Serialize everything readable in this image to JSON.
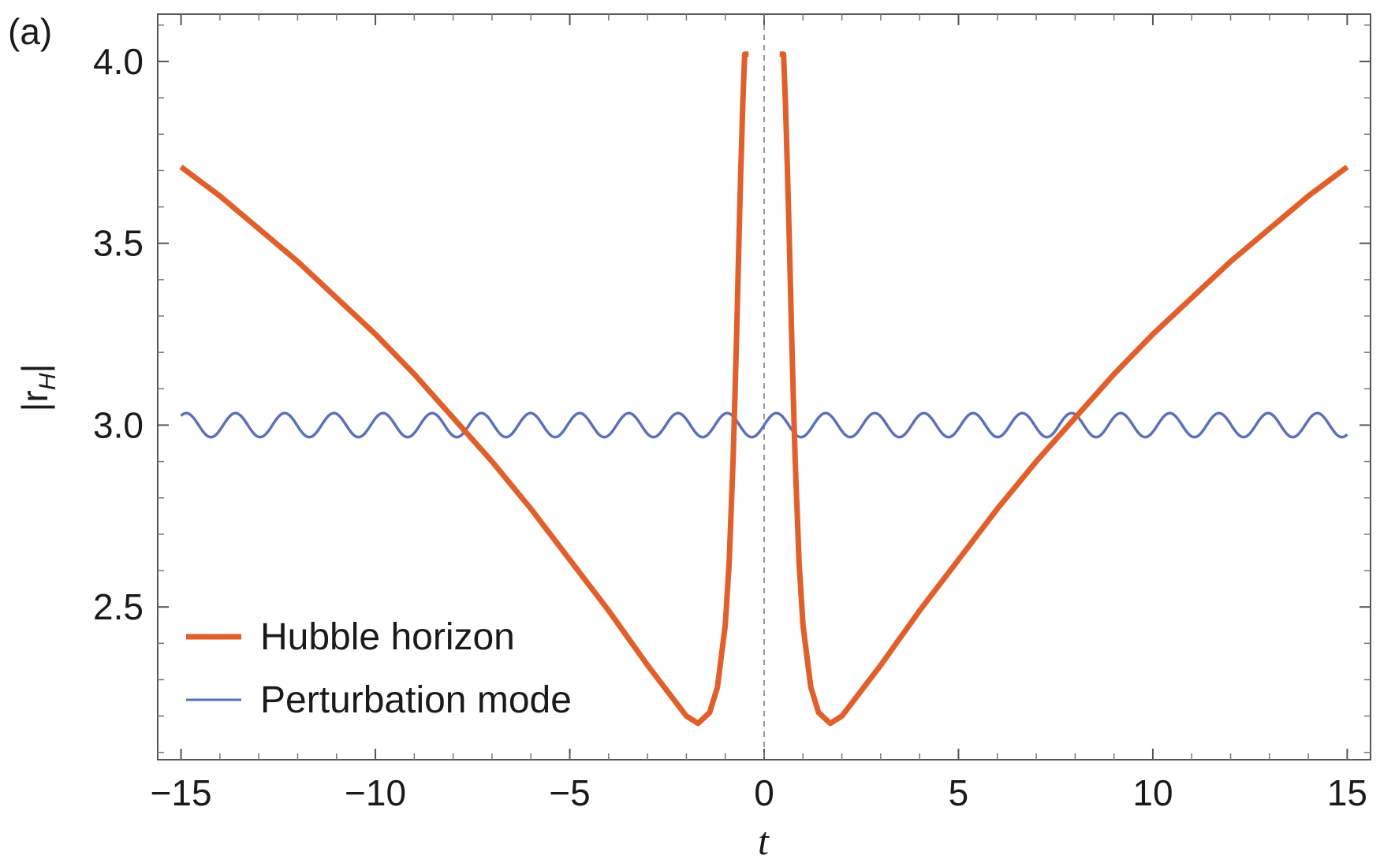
{
  "panel_label": "(a)",
  "chart_data": {
    "type": "line",
    "xlabel": "t",
    "ylabel_main": "|r",
    "ylabel_sub": "H",
    "ylabel_close": "|",
    "xlim": [
      -15.6,
      15.6
    ],
    "ylim": [
      2.08,
      4.13
    ],
    "xticks": [
      -15,
      -10,
      -5,
      0,
      5,
      10,
      15
    ],
    "xtick_labels": [
      "−15",
      "−10",
      "−5",
      "0",
      "5",
      "10",
      "15"
    ],
    "yticks": [
      2.5,
      3.0,
      3.5,
      4.0
    ],
    "ytick_labels": [
      "2.5",
      "3.0",
      "3.5",
      "4.0"
    ],
    "grid": false,
    "legend_position": "bottom-left",
    "series": [
      {
        "name": "Hubble horizon",
        "color": "#e05f2a",
        "x": [
          -15,
          -14,
          -13,
          -12,
          -11,
          -10,
          -9,
          -8,
          -7,
          -6,
          -5,
          -4,
          -3,
          -2.5,
          -2,
          -1.7,
          -1.4,
          -1.2,
          -1,
          -0.9,
          -0.8,
          -0.75,
          -0.7,
          -0.65,
          -0.6,
          -0.55,
          -0.5,
          -0.45,
          -0.4,
          null,
          0.4,
          0.45,
          0.5,
          0.55,
          0.6,
          0.65,
          0.7,
          0.75,
          0.8,
          0.9,
          1,
          1.2,
          1.4,
          1.7,
          2,
          2.5,
          3,
          4,
          5,
          6,
          7,
          8,
          9,
          10,
          11,
          12,
          13,
          14,
          15
        ],
        "y": [
          3.71,
          3.63,
          3.54,
          3.45,
          3.35,
          3.25,
          3.14,
          3.02,
          2.9,
          2.77,
          2.63,
          2.49,
          2.34,
          2.27,
          2.2,
          2.18,
          2.21,
          2.28,
          2.45,
          2.62,
          2.9,
          3.08,
          3.28,
          3.5,
          3.7,
          3.88,
          4.03,
          4.12,
          4.12,
          null,
          4.12,
          4.12,
          4.03,
          3.88,
          3.7,
          3.5,
          3.28,
          3.08,
          2.9,
          2.62,
          2.45,
          2.28,
          2.21,
          2.18,
          2.2,
          2.27,
          2.34,
          2.49,
          2.63,
          2.77,
          2.9,
          3.02,
          3.14,
          3.25,
          3.35,
          3.45,
          3.54,
          3.63,
          3.71
        ]
      },
      {
        "name": "Perturbation mode",
        "color": "#5b72b6",
        "x_range": [
          -15,
          15
        ],
        "offset": 3.0,
        "amplitude": 0.033,
        "period": 1.265,
        "phase": 0.0
      }
    ]
  }
}
